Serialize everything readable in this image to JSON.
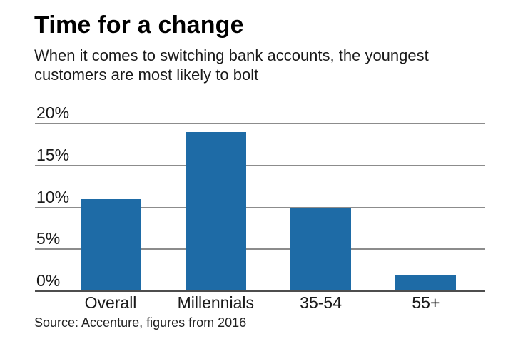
{
  "header": {
    "title": "Time for a change",
    "subtitle_lines": [
      "When it comes to switching bank accounts, the youngest",
      "customers are most likely to bolt"
    ]
  },
  "footer": {
    "source": "Source: Accenture, figures from 2016"
  },
  "colors": {
    "bar": "#1e6ba6",
    "gridline": "#8c8c8c",
    "axis": "#4d4d4d",
    "text": "#1a1a1a"
  },
  "chart_data": {
    "type": "bar",
    "title": "Time for a change",
    "subtitle": "When it comes to switching bank accounts, the youngest customers are most likely to bolt",
    "categories": [
      "Overall",
      "Millennials",
      "35-54",
      "55+"
    ],
    "values": [
      11,
      19,
      10,
      2
    ],
    "unit": "%",
    "xlabel": "",
    "ylabel": "",
    "ylim": [
      0,
      20
    ],
    "ytick_values": [
      20,
      15,
      10,
      5,
      0
    ],
    "ytick_labels": [
      "20%",
      "15%",
      "10%",
      "5%",
      "0%"
    ],
    "grid": true,
    "legend": false,
    "source": "Source: Accenture, figures from 2016"
  }
}
